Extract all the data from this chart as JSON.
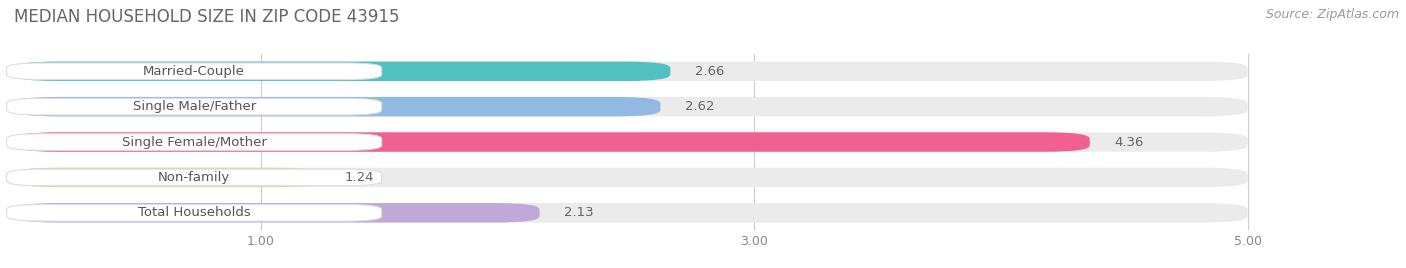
{
  "title": "MEDIAN HOUSEHOLD SIZE IN ZIP CODE 43915",
  "source": "Source: ZipAtlas.com",
  "categories": [
    "Married-Couple",
    "Single Male/Father",
    "Single Female/Mother",
    "Non-family",
    "Total Households"
  ],
  "values": [
    2.66,
    2.62,
    4.36,
    1.24,
    2.13
  ],
  "bar_colors": [
    "#52C0C0",
    "#92B8E4",
    "#F06090",
    "#F5C8A0",
    "#C0A8D8"
  ],
  "label_box_color": "#FFFFFF",
  "background_color": "#FFFFFF",
  "bar_bg_color": "#EBEBEB",
  "xlim": [
    0.0,
    5.3
  ],
  "xmin": 0.0,
  "xmax": 5.0,
  "xticks": [
    1.0,
    3.0,
    5.0
  ],
  "bar_height": 0.55,
  "title_fontsize": 12,
  "label_fontsize": 9.5,
  "value_fontsize": 9.5,
  "source_fontsize": 9
}
